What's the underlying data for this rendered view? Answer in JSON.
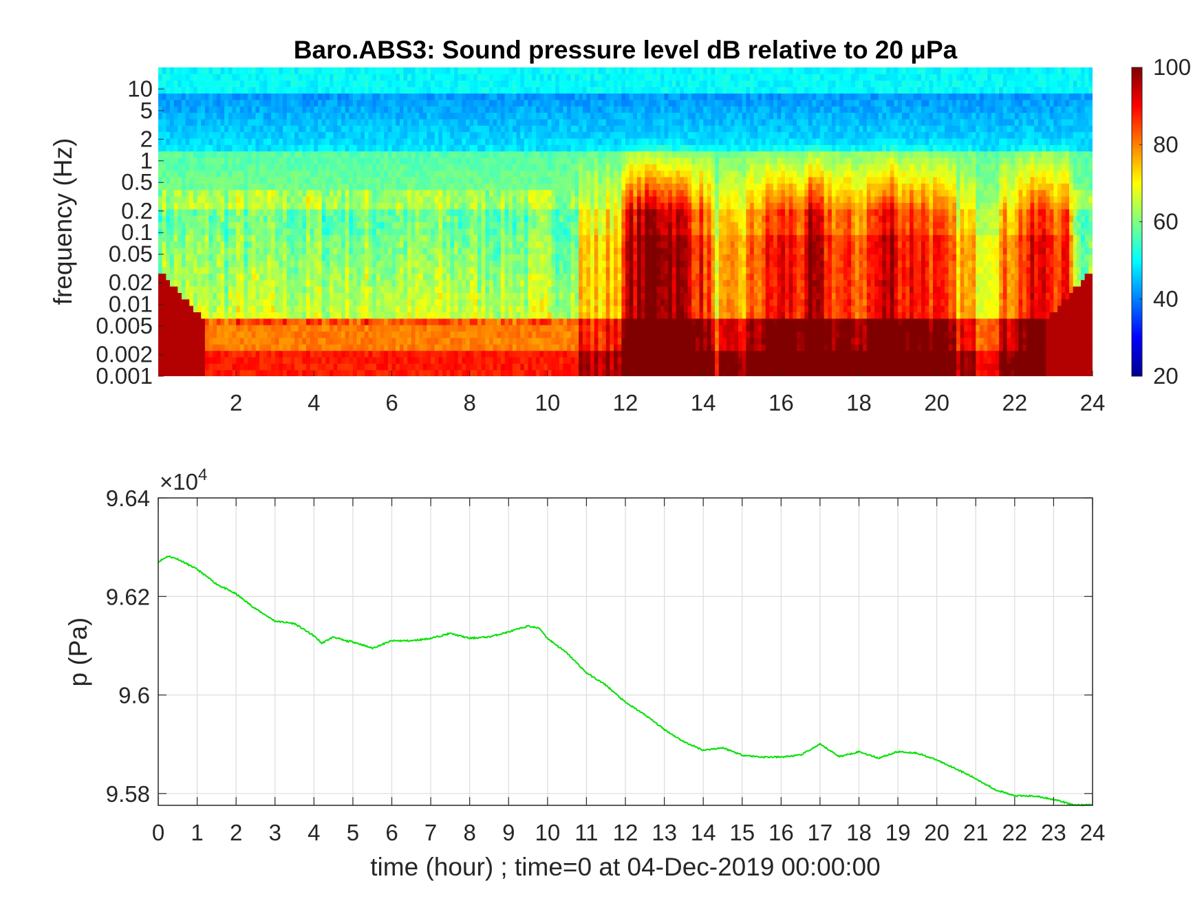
{
  "chart_data": [
    {
      "type": "heatmap",
      "title": "Baro.ABS3: Sound pressure level dB relative to 20 μPa",
      "ylabel": "frequency (Hz)",
      "yscale": "log",
      "ylim": [
        0.001,
        20
      ],
      "y_ticks": [
        0.001,
        0.002,
        0.005,
        0.01,
        0.02,
        0.05,
        0.1,
        0.2,
        0.5,
        1,
        2,
        5,
        10
      ],
      "y_tick_labels": [
        "0.001",
        "0.002",
        "0.005",
        "0.01",
        "0.02",
        "0.05",
        "0.1",
        "0.2",
        "0.5",
        "1",
        "2",
        "5",
        "10"
      ],
      "xlim": [
        0,
        24
      ],
      "x_ticks": [
        2,
        4,
        6,
        8,
        10,
        12,
        14,
        16,
        18,
        20,
        22,
        24
      ],
      "x_tick_labels": [
        "2",
        "4",
        "6",
        "8",
        "10",
        "12",
        "14",
        "16",
        "18",
        "20",
        "22",
        "24"
      ],
      "colormap": "jet",
      "colorbar": {
        "range": [
          20,
          100
        ],
        "ticks": [
          20,
          40,
          60,
          80,
          100
        ],
        "tick_labels": [
          "20",
          "40",
          "60",
          "80",
          "100"
        ]
      }
    },
    {
      "type": "line",
      "xlabel": "time (hour) ; time=0 at 04-Dec-2019 00:00:00",
      "ylabel": "p (Pa)",
      "y_exponent_label": "×10",
      "y_exponent": "4",
      "xlim": [
        0,
        24
      ],
      "ylim": [
        95776,
        96400
      ],
      "x_ticks": [
        0,
        1,
        2,
        3,
        4,
        5,
        6,
        7,
        8,
        9,
        10,
        11,
        12,
        13,
        14,
        15,
        16,
        17,
        18,
        19,
        20,
        21,
        22,
        23,
        24
      ],
      "x_tick_labels": [
        "0",
        "1",
        "2",
        "3",
        "4",
        "5",
        "6",
        "7",
        "8",
        "9",
        "10",
        "11",
        "12",
        "13",
        "14",
        "15",
        "16",
        "17",
        "18",
        "19",
        "20",
        "21",
        "22",
        "23",
        "24"
      ],
      "y_ticks": [
        95800,
        96000,
        96200,
        96400
      ],
      "y_tick_labels": [
        "9.58",
        "9.6",
        "9.62",
        "9.64"
      ],
      "grid": true,
      "color": "#00e000",
      "series": [
        {
          "x": [
            0,
            0.25,
            0.5,
            1,
            1.5,
            2,
            2.5,
            3,
            3.5,
            4,
            4.2,
            4.5,
            4.8,
            5,
            5.5,
            6,
            6.5,
            7,
            7.5,
            8,
            8.5,
            9,
            9.5,
            9.8,
            10,
            10.5,
            11,
            11.5,
            12,
            12.5,
            13,
            13.5,
            14,
            14.5,
            15,
            15.5,
            16,
            16.5,
            17,
            17.5,
            18,
            18.5,
            19,
            19.5,
            20,
            20.5,
            21,
            21.5,
            22,
            22.5,
            23,
            23.5,
            24
          ],
          "y": [
            96270,
            96282,
            96276,
            96255,
            96225,
            96205,
            96175,
            96150,
            96145,
            96120,
            96105,
            96118,
            96110,
            96108,
            96095,
            96110,
            96110,
            96115,
            96125,
            96115,
            96118,
            96128,
            96140,
            96135,
            96115,
            96085,
            96045,
            96020,
            95985,
            95960,
            95930,
            95905,
            95888,
            95893,
            95878,
            95874,
            95874,
            95878,
            95900,
            95875,
            95885,
            95872,
            95885,
            95882,
            95868,
            95850,
            95830,
            95808,
            95795,
            95795,
            95788,
            95777,
            95777
          ]
        }
      ]
    }
  ]
}
